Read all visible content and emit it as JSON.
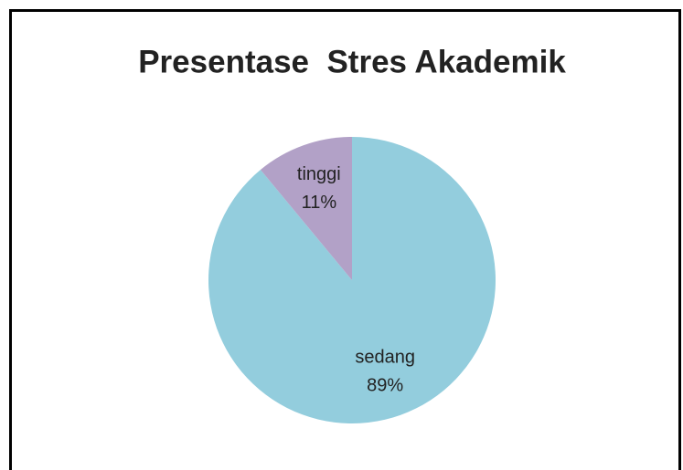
{
  "chart_data": {
    "type": "pie",
    "title": "Presentase  Stres Akademik",
    "categories": [
      "sedang",
      "tinggi"
    ],
    "values": [
      89,
      11
    ],
    "value_labels": [
      "89%",
      "11%"
    ],
    "colors": [
      "#93cddd",
      "#b2a1c7"
    ]
  }
}
